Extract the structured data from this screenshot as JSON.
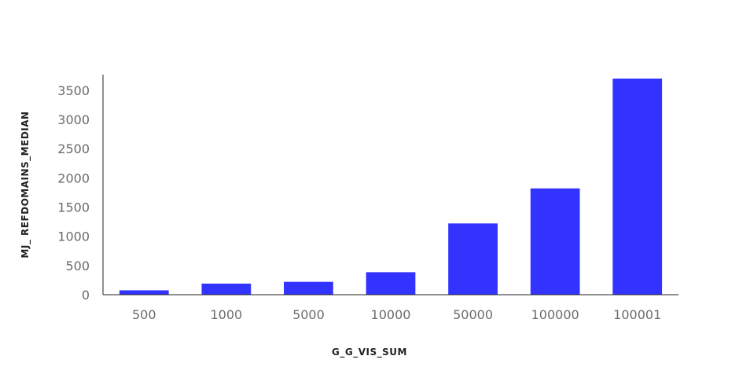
{
  "chart_data": {
    "type": "bar",
    "categories": [
      "500",
      "1000",
      "5000",
      "10000",
      "50000",
      "100000",
      "100001"
    ],
    "values": [
      75,
      190,
      220,
      385,
      1220,
      1820,
      3700
    ],
    "title": "",
    "xlabel": "G_G_VIS_SUM",
    "ylabel": "MJ_ REFDOMAINS_MEDIAN",
    "ylim": [
      0,
      3700
    ],
    "yticks": [
      0,
      500,
      1000,
      1500,
      2000,
      2500,
      3000,
      3500
    ],
    "grid": false,
    "bar_color": "#3333ff"
  }
}
